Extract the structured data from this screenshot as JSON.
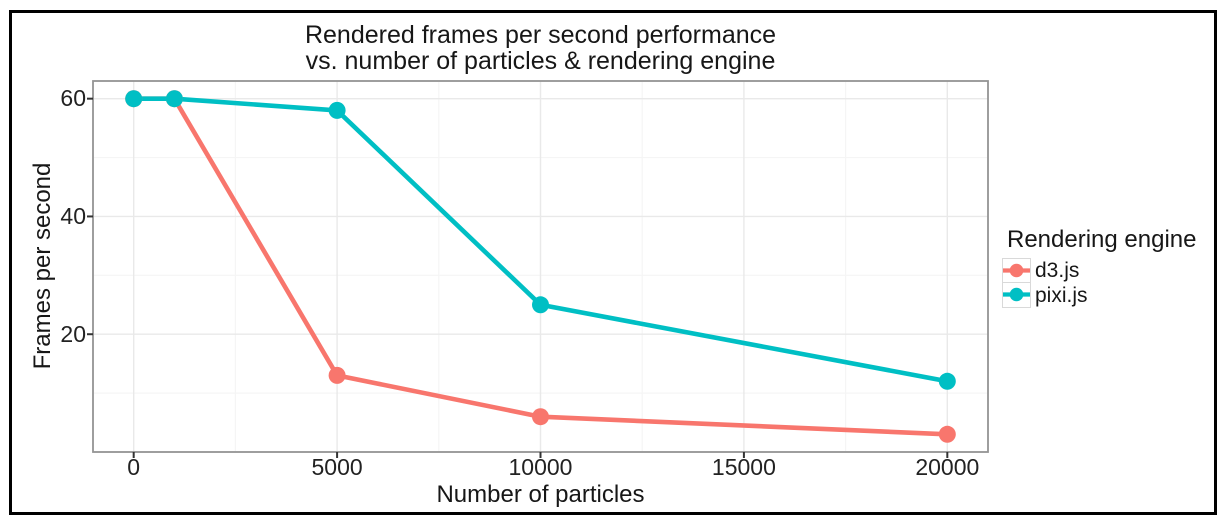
{
  "chart_data": {
    "type": "line",
    "title_lines": [
      "Rendered frames per second performance",
      "vs. number of particles & rendering engine"
    ],
    "xlabel": "Number of particles",
    "ylabel": "Frames per second",
    "xlim": [
      -1000,
      21000
    ],
    "ylim": [
      0,
      63
    ],
    "x_ticks": [
      0,
      5000,
      10000,
      15000,
      20000
    ],
    "x_minor_ticks": [
      2500,
      7500,
      12500,
      17500
    ],
    "y_ticks": [
      20,
      40,
      60
    ],
    "y_minor_ticks": [
      10,
      30,
      50
    ],
    "grid": true,
    "legend": {
      "title": "Rendering engine",
      "position": "right"
    },
    "series": [
      {
        "name": "d3.js",
        "color": "#F8766D",
        "points": [
          [
            0,
            60
          ],
          [
            1000,
            60
          ],
          [
            5000,
            13
          ],
          [
            10000,
            6
          ],
          [
            20000,
            3
          ]
        ]
      },
      {
        "name": "pixi.js",
        "color": "#00BFC4",
        "points": [
          [
            0,
            60
          ],
          [
            1000,
            60
          ],
          [
            5000,
            58
          ],
          [
            10000,
            25
          ],
          [
            20000,
            12
          ]
        ]
      }
    ],
    "style_colors": {
      "grid_major": "#e9e9e9",
      "grid_minor": "#f5f5f5",
      "panel_border": "#949494",
      "tick_mark": "#333333"
    }
  }
}
